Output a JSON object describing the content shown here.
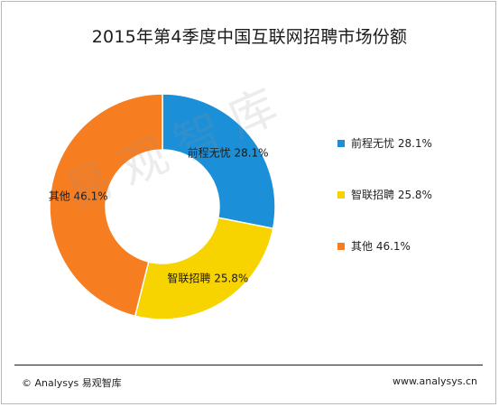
{
  "chart_data": {
    "type": "pie",
    "title": "2015年第4季度中国互联网招聘市场份额",
    "categories": [
      "前程无忧",
      "智联招聘",
      "其他"
    ],
    "values": [
      28.1,
      25.8,
      46.1
    ],
    "unit": "%",
    "value_labels": [
      "28.1%",
      "25.8%",
      "46.1%"
    ],
    "colors": [
      "#1b8fd8",
      "#f7d300",
      "#f77d21"
    ],
    "legend_position": "right",
    "grid": false
  },
  "legend": {
    "items": [
      {
        "label": "前程无忧 28.1%",
        "color": "#1b8fd8"
      },
      {
        "label": "智联招聘 25.8%",
        "color": "#f7d300"
      },
      {
        "label": "其他 46.1%",
        "color": "#f77d21"
      }
    ]
  },
  "watermark": "易观智库",
  "footer": {
    "left": "© Analysys 易观智库",
    "right": "www.analysys.cn"
  }
}
